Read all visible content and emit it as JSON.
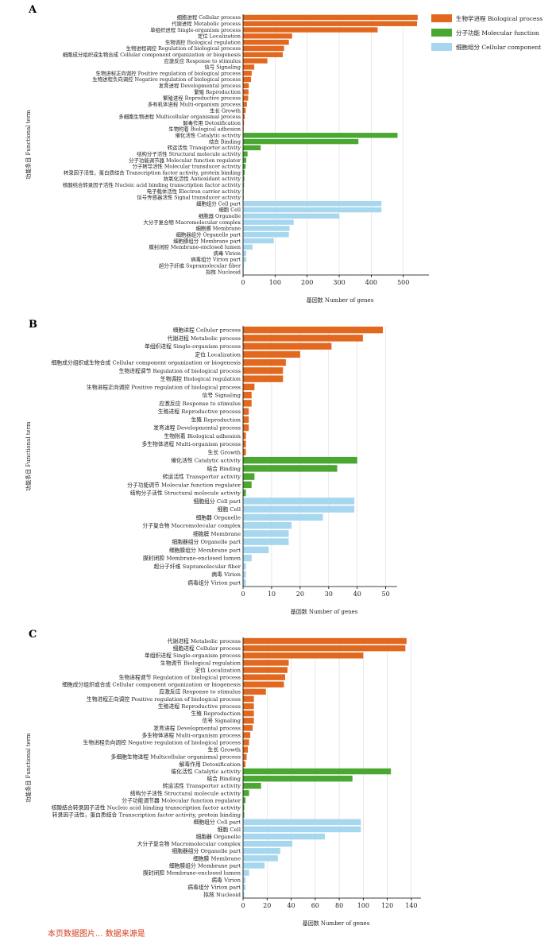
{
  "colors": {
    "bp": "#e2681f",
    "mf": "#4aa832",
    "cc": "#a7d7ee",
    "caption": "#d43c1c"
  },
  "legend": [
    {
      "key": "bp",
      "label": "生物学进程 Biological process"
    },
    {
      "key": "mf",
      "label": "分子功能 Molecular function"
    },
    {
      "key": "cc",
      "label": "细胞组分 Cellular component"
    }
  ],
  "bottom_caption": "本页数据图片... 数据来源是",
  "chart_data": [
    {
      "type": "bar",
      "panel": "A",
      "orientation": "horizontal",
      "xlabel": "基因数 Number of genes",
      "ylabel": "功能条目 Functional term",
      "xlim": [
        0,
        580
      ],
      "xticks": [
        0,
        100,
        200,
        300,
        400,
        500
      ],
      "grid": true,
      "categories": [
        {
          "label": "细胞进程 Cellular process",
          "value": 545,
          "group": "bp"
        },
        {
          "label": "代谢进程 Metabolic process",
          "value": 543,
          "group": "bp"
        },
        {
          "label": "单组织进程 Single-organism process",
          "value": 420,
          "group": "bp"
        },
        {
          "label": "定位 Localization",
          "value": 153,
          "group": "bp"
        },
        {
          "label": "生物调控 Biological regulation",
          "value": 143,
          "group": "bp"
        },
        {
          "label": "生物进程调控 Regulation of biological process",
          "value": 128,
          "group": "bp"
        },
        {
          "label": "细胞成分组织或生物合成 Cellular component organization or biogenesis",
          "value": 124,
          "group": "bp"
        },
        {
          "label": "应激反应 Response to stimulus",
          "value": 76,
          "group": "bp"
        },
        {
          "label": "信号 Signaling",
          "value": 35,
          "group": "bp"
        },
        {
          "label": "生物进程正向调控 Positive regulation of biological process",
          "value": 27,
          "group": "bp"
        },
        {
          "label": "生物进程负向调控 Negative regulation of biological process",
          "value": 25,
          "group": "bp"
        },
        {
          "label": "发育进程 Developmental process",
          "value": 18,
          "group": "bp"
        },
        {
          "label": "繁殖 Reproduction",
          "value": 17,
          "group": "bp"
        },
        {
          "label": "繁殖进程 Reproductive process",
          "value": 16,
          "group": "bp"
        },
        {
          "label": "多有机体进程 Multi-organism process",
          "value": 12,
          "group": "bp"
        },
        {
          "label": "生长 Growth",
          "value": 8,
          "group": "bp"
        },
        {
          "label": "多细胞生物进程 Multicellular organismal process",
          "value": 5,
          "group": "bp"
        },
        {
          "label": "解毒作用 Detoxification",
          "value": 3,
          "group": "bp"
        },
        {
          "label": "生物附着 Biological adhesion",
          "value": 2,
          "group": "bp"
        },
        {
          "label": "催化活性 Catalytic activity",
          "value": 482,
          "group": "mf"
        },
        {
          "label": "结合 Binding",
          "value": 360,
          "group": "mf"
        },
        {
          "label": "转运活性 Transporter activity",
          "value": 55,
          "group": "mf"
        },
        {
          "label": "结构分子活性 Structural molecule activity",
          "value": 14,
          "group": "mf"
        },
        {
          "label": "分子功能调节器 Molecular function regulator",
          "value": 10,
          "group": "mf"
        },
        {
          "label": "分子转导活性 Molecular transducer activity",
          "value": 8,
          "group": "mf"
        },
        {
          "label": "转录因子活性，蛋白质结合 Transcription factor activity, protein binding",
          "value": 5,
          "group": "mf"
        },
        {
          "label": "抗氧化活性 Antioxidant activity",
          "value": 4,
          "group": "mf"
        },
        {
          "label": "核酸结合转录因子活性 Nucleic acid binding transcription factor activity",
          "value": 3,
          "group": "mf"
        },
        {
          "label": "电子载体活性 Electron carrier activity",
          "value": 2,
          "group": "mf"
        },
        {
          "label": "信号传感器活性 Signal transducer activity",
          "value": 2,
          "group": "mf"
        },
        {
          "label": "细胞组分 Cell part",
          "value": 432,
          "group": "cc"
        },
        {
          "label": "细胞 Cell",
          "value": 432,
          "group": "cc"
        },
        {
          "label": "细胞器 Organelle",
          "value": 300,
          "group": "cc"
        },
        {
          "label": "大分子复合物 Macromolecular complex",
          "value": 158,
          "group": "cc"
        },
        {
          "label": "细胞膜 Membrane",
          "value": 145,
          "group": "cc"
        },
        {
          "label": "细胞器组分 Organelle part",
          "value": 143,
          "group": "cc"
        },
        {
          "label": "细胞膜组分 Membrane part",
          "value": 96,
          "group": "cc"
        },
        {
          "label": "膜封闭腔 Membrane-enclosed lumen",
          "value": 30,
          "group": "cc"
        },
        {
          "label": "病毒 Virion",
          "value": 10,
          "group": "cc"
        },
        {
          "label": "病毒组分 Virion part",
          "value": 10,
          "group": "cc"
        },
        {
          "label": "超分子纤维 Supramolecular fiber",
          "value": 3,
          "group": "cc"
        },
        {
          "label": "拟核 Nucleoid",
          "value": 2,
          "group": "cc"
        }
      ]
    },
    {
      "type": "bar",
      "panel": "B",
      "orientation": "horizontal",
      "xlabel": "基因数 Number of genes",
      "ylabel": "功能条目 Functional term",
      "xlim": [
        0,
        54
      ],
      "xticks": [
        0,
        10,
        20,
        30,
        40,
        50
      ],
      "grid": true,
      "categories": [
        {
          "label": "细胞进程 Cellular process",
          "value": 49,
          "group": "bp"
        },
        {
          "label": "代谢进程 Metabolic process",
          "value": 42,
          "group": "bp"
        },
        {
          "label": "单组织进程 Single-organism process",
          "value": 31,
          "group": "bp"
        },
        {
          "label": "定位 Localization",
          "value": 20,
          "group": "bp"
        },
        {
          "label": "细胞成分组织或生物合成 Cellular component organization or biogenesis",
          "value": 15,
          "group": "bp"
        },
        {
          "label": "生物进程调节 Regulation of biological process",
          "value": 14,
          "group": "bp"
        },
        {
          "label": "生物调控 Biological regulation",
          "value": 14,
          "group": "bp"
        },
        {
          "label": "生物进程正向调控 Positive regulation of biological process",
          "value": 4,
          "group": "bp"
        },
        {
          "label": "信号 Signaling",
          "value": 3,
          "group": "bp"
        },
        {
          "label": "应激反应 Response to stimulus",
          "value": 3,
          "group": "bp"
        },
        {
          "label": "生殖进程 Reproductive process",
          "value": 2,
          "group": "bp"
        },
        {
          "label": "生殖 Reproduction",
          "value": 2,
          "group": "bp"
        },
        {
          "label": "发育进程 Developmental process",
          "value": 2,
          "group": "bp"
        },
        {
          "label": "生物附着 Biological adhesion",
          "value": 1,
          "group": "bp"
        },
        {
          "label": "多生物体进程 Multi-organism process",
          "value": 1,
          "group": "bp"
        },
        {
          "label": "生长 Growth",
          "value": 1,
          "group": "bp"
        },
        {
          "label": "催化活性 Catalytic activity",
          "value": 40,
          "group": "mf"
        },
        {
          "label": "结合 Binding",
          "value": 33,
          "group": "mf"
        },
        {
          "label": "转运活性 Transporter activity",
          "value": 4,
          "group": "mf"
        },
        {
          "label": "分子功能调节 Molecular function regulator",
          "value": 3,
          "group": "mf"
        },
        {
          "label": "结构分子活性 Structural molecule activity",
          "value": 1,
          "group": "mf"
        },
        {
          "label": "细胞组分 Cell part",
          "value": 39,
          "group": "cc"
        },
        {
          "label": "细胞 Cell",
          "value": 39,
          "group": "cc"
        },
        {
          "label": "细胞器 Organelle",
          "value": 28,
          "group": "cc"
        },
        {
          "label": "分子复合物 Macromolecular complex",
          "value": 17,
          "group": "cc"
        },
        {
          "label": "细胞膜 Membrane",
          "value": 16,
          "group": "cc"
        },
        {
          "label": "细胞器组分 Organelle part",
          "value": 16,
          "group": "cc"
        },
        {
          "label": "细胞膜组分 Membrane part",
          "value": 9,
          "group": "cc"
        },
        {
          "label": "膜封闭腔 Membrane-enclosed lumen",
          "value": 3,
          "group": "cc"
        },
        {
          "label": "超分子纤维 Supramolecular fiber",
          "value": 1,
          "group": "cc"
        },
        {
          "label": "病毒 Virion",
          "value": 1,
          "group": "cc"
        },
        {
          "label": "病毒组分 Virion part",
          "value": 1,
          "group": "cc"
        }
      ]
    },
    {
      "type": "bar",
      "panel": "C",
      "orientation": "horizontal",
      "xlabel": "基因数 Number of genes",
      "ylabel": "功能条目 Functional term",
      "xlim": [
        0,
        148
      ],
      "xticks": [
        0,
        20,
        40,
        60,
        80,
        100,
        120,
        140
      ],
      "grid": true,
      "categories": [
        {
          "label": "代谢进程 Metabolic process",
          "value": 136,
          "group": "bp"
        },
        {
          "label": "细胞进程 Cellular process",
          "value": 135,
          "group": "bp"
        },
        {
          "label": "单组织进程 Single-organism process",
          "value": 100,
          "group": "bp"
        },
        {
          "label": "生物调节 Biological regulation",
          "value": 38,
          "group": "bp"
        },
        {
          "label": "定位 Localization",
          "value": 37,
          "group": "bp"
        },
        {
          "label": "生物进程调节 Regulation of biological process",
          "value": 35,
          "group": "bp"
        },
        {
          "label": "细胞成分组织或合成 Cellular component organization or biogenesis",
          "value": 34,
          "group": "bp"
        },
        {
          "label": "应激反应 Response to stimulus",
          "value": 19,
          "group": "bp"
        },
        {
          "label": "生物进程正向调控 Positive regulation of biological process",
          "value": 9,
          "group": "bp"
        },
        {
          "label": "生殖进程 Reproductive process",
          "value": 9,
          "group": "bp"
        },
        {
          "label": "生殖 Reproduction",
          "value": 9,
          "group": "bp"
        },
        {
          "label": "信号 Signaling",
          "value": 9,
          "group": "bp"
        },
        {
          "label": "发育进程 Developmental process",
          "value": 8,
          "group": "bp"
        },
        {
          "label": "多生物体进程 Multi-organism process",
          "value": 6,
          "group": "bp"
        },
        {
          "label": "生物进程负向调控 Negative regulation of biological process",
          "value": 5,
          "group": "bp"
        },
        {
          "label": "生长 Growth",
          "value": 4,
          "group": "bp"
        },
        {
          "label": "多细胞生物进程 Multicellular organismal process",
          "value": 3,
          "group": "bp"
        },
        {
          "label": "解毒作用 Detoxification",
          "value": 2,
          "group": "bp"
        },
        {
          "label": "催化活性 Catalytic activity",
          "value": 123,
          "group": "mf"
        },
        {
          "label": "结合 Binding",
          "value": 91,
          "group": "mf"
        },
        {
          "label": "转运活性 Transporter activity",
          "value": 15,
          "group": "mf"
        },
        {
          "label": "结构分子活性 Structural molecule activity",
          "value": 5,
          "group": "mf"
        },
        {
          "label": "分子功能调节器 Molecular function regulator",
          "value": 2,
          "group": "mf"
        },
        {
          "label": "核酸结合转录因子活性 Nucleic acid binding transcription factor activity",
          "value": 1,
          "group": "mf"
        },
        {
          "label": "转录因子活性，蛋白质结合 Transcription factor activity, protein binding",
          "value": 1,
          "group": "mf"
        },
        {
          "label": "细胞组分 Cell part",
          "value": 98,
          "group": "cc"
        },
        {
          "label": "细胞 Cell",
          "value": 98,
          "group": "cc"
        },
        {
          "label": "细胞器 Organelle",
          "value": 68,
          "group": "cc"
        },
        {
          "label": "大分子复合物 Macromolecular complex",
          "value": 41,
          "group": "cc"
        },
        {
          "label": "细胞器组分 Organelle part",
          "value": 31,
          "group": "cc"
        },
        {
          "label": "细胞膜 Membrane",
          "value": 29,
          "group": "cc"
        },
        {
          "label": "细胞膜组分 Membrane part",
          "value": 18,
          "group": "cc"
        },
        {
          "label": "膜封闭腔 Membrane-enclosed lumen",
          "value": 5,
          "group": "cc"
        },
        {
          "label": "病毒 Virion",
          "value": 2,
          "group": "cc"
        },
        {
          "label": "病毒组分 Virion part",
          "value": 2,
          "group": "cc"
        },
        {
          "label": "拟核 Nucleoid",
          "value": 1,
          "group": "cc"
        }
      ]
    }
  ]
}
